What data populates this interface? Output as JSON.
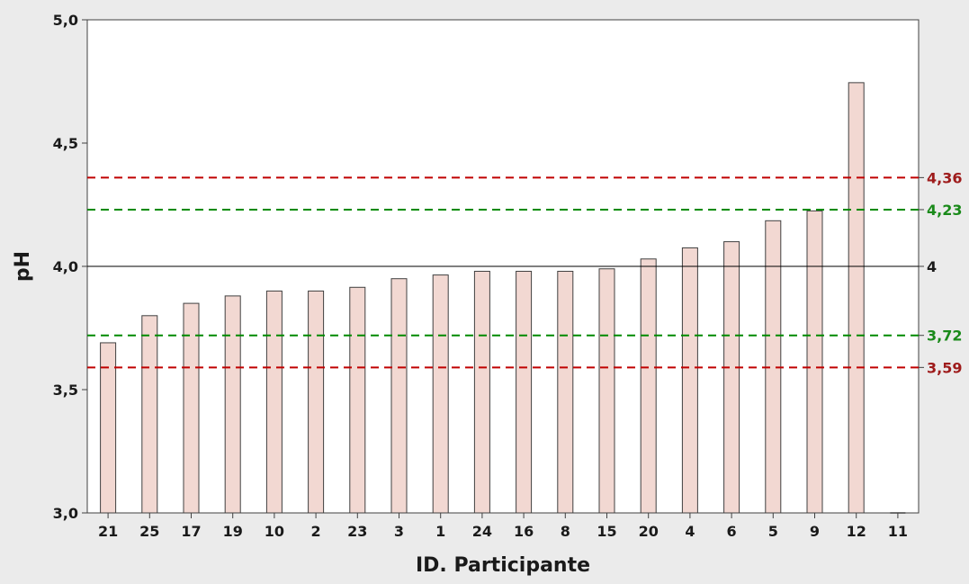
{
  "chart_data": {
    "type": "bar",
    "xlabel": "ID. Participante",
    "ylabel": "pH",
    "ylim": [
      3.0,
      5.0
    ],
    "yticks": [
      "3,0",
      "3,5",
      "4,0",
      "4,5",
      "5,0"
    ],
    "ytick_values": [
      3.0,
      3.5,
      4.0,
      4.5,
      5.0
    ],
    "grid": false,
    "categories": [
      "21",
      "25",
      "17",
      "19",
      "10",
      "2",
      "23",
      "3",
      "1",
      "24",
      "16",
      "8",
      "15",
      "20",
      "4",
      "6",
      "5",
      "9",
      "12",
      "11"
    ],
    "values": [
      3.69,
      3.8,
      3.85,
      3.88,
      3.9,
      3.9,
      3.915,
      3.95,
      3.965,
      3.98,
      3.98,
      3.98,
      3.99,
      4.03,
      4.075,
      4.1,
      4.185,
      4.225,
      4.745,
      3.0
    ],
    "reference_lines": [
      {
        "value": 4.36,
        "label": "4,36",
        "color": "#c00000",
        "style": "dashed"
      },
      {
        "value": 4.23,
        "label": "4,23",
        "color": "#008a00",
        "style": "dashed"
      },
      {
        "value": 4.0,
        "label": "4",
        "color": "#000000",
        "style": "solid"
      },
      {
        "value": 3.72,
        "label": "3,72",
        "color": "#008a00",
        "style": "dashed"
      },
      {
        "value": 3.59,
        "label": "3,59",
        "color": "#c00000",
        "style": "dashed"
      }
    ],
    "colors": {
      "bar_fill": "#f2d8d2",
      "bar_stroke": "#404040",
      "plot_bg": "#ffffff",
      "page_bg": "#ebebeb",
      "red_line": "#c00000",
      "red_label": "#9e1b1b",
      "green_line": "#008a00",
      "green_label": "#1a8a1a"
    }
  }
}
